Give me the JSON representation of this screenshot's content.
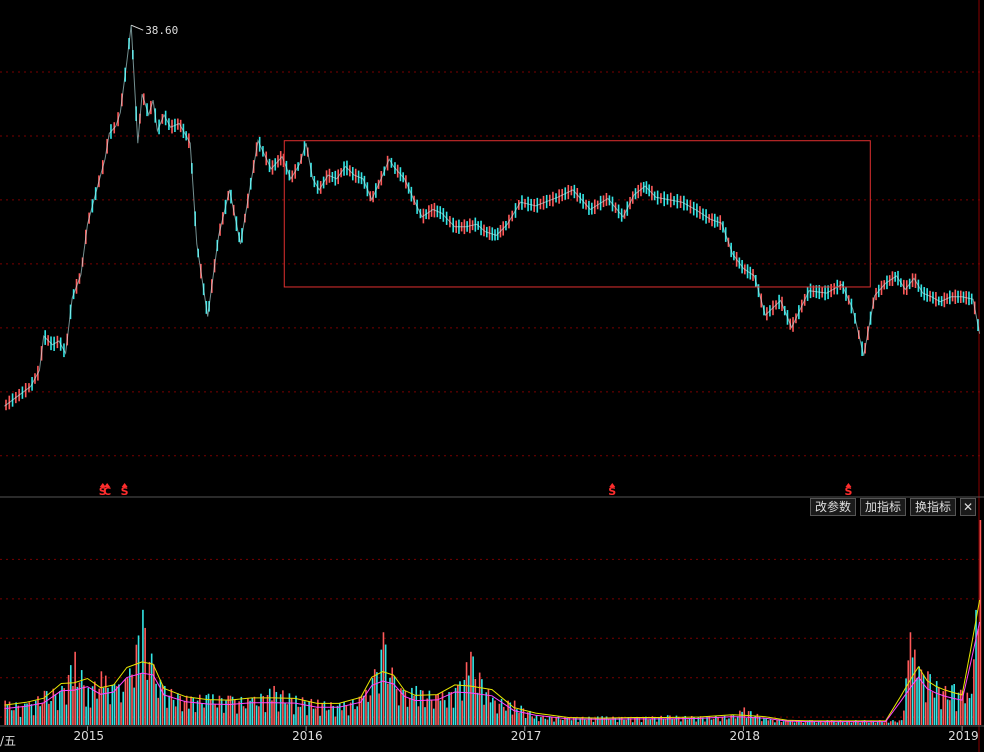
{
  "toolbar": {
    "change_params": "改参数",
    "add_indicator": "加指标",
    "switch_indicator": "换指标",
    "close_symbol": "✕"
  },
  "corner_label": "/五",
  "colors": {
    "background": "#000000",
    "up": "#ff5a5a",
    "down": "#33e6e6",
    "grid": "#7a0000",
    "axis": "#8a0000",
    "rectangle": "#e03030",
    "marker": "#ff2d2d",
    "ma_yellow": "#e6e600",
    "ma_magenta": "#ff44ff",
    "text": "#dddddd"
  },
  "chart_data": [
    {
      "type": "line",
      "panel": "price",
      "x_tick_labels": [
        "2015",
        "2016",
        "2017",
        "2018",
        "2019"
      ],
      "x_tick_values": [
        2015.0,
        2016.0,
        2017.0,
        2018.0,
        2019.0
      ],
      "xlim": [
        2014.6,
        2019.1
      ],
      "ylim": [
        2,
        40
      ],
      "grid": true,
      "max_label": "38.60",
      "series": [
        {
          "x": [
            2014.62,
            2014.68,
            2014.74,
            2014.78,
            2014.8,
            2014.84,
            2014.87,
            2014.9,
            2014.93,
            2014.97,
            2015.0,
            2015.03,
            2015.06,
            2015.08,
            2015.1,
            2015.13,
            2015.15,
            2015.18,
            2015.2,
            2015.23,
            2015.25,
            2015.28,
            2015.3,
            2015.32,
            2015.35,
            2015.38,
            2015.42,
            2015.47,
            2015.5,
            2015.55,
            2015.6,
            2015.65,
            2015.7,
            2015.78,
            2015.84,
            2015.89,
            2015.93,
            2015.97,
            2016.0,
            2016.03,
            2016.06,
            2016.1,
            2016.14,
            2016.18,
            2016.22,
            2016.26,
            2016.3,
            2016.35,
            2016.38,
            2016.4,
            2016.45,
            2016.5,
            2016.53,
            2016.58,
            2016.62,
            2016.68,
            2016.73,
            2016.78,
            2016.82,
            2016.87,
            2016.92,
            2016.98,
            2017.05,
            2017.15,
            2017.22,
            2017.3,
            2017.38,
            2017.45,
            2017.5,
            2017.55,
            2017.6,
            2017.66,
            2017.72,
            2017.78,
            2017.85,
            2017.9,
            2017.95,
            2018.0,
            2018.05,
            2018.1,
            2018.17,
            2018.22,
            2018.3,
            2018.38,
            2018.45,
            2018.5,
            2018.52,
            2018.55,
            2018.6,
            2018.65,
            2018.7,
            2018.74,
            2018.78,
            2018.82,
            2018.86,
            2018.9,
            2018.95,
            2019.0,
            2019.05,
            2019.08
          ],
          "y": [
            7.6,
            8.4,
            9.2,
            10.5,
            13.3,
            12.6,
            12.9,
            11.9,
            16.4,
            18.3,
            22.4,
            24.4,
            26.4,
            27.7,
            29.8,
            30.4,
            31.5,
            35.6,
            38.6,
            29.0,
            33.0,
            31.3,
            32.5,
            30.0,
            31.3,
            30.3,
            30.6,
            29.0,
            20.8,
            14.9,
            21.5,
            25.2,
            20.8,
            29.2,
            26.9,
            27.9,
            26.1,
            27.3,
            29.0,
            26.1,
            25.2,
            26.4,
            26.1,
            27.1,
            26.4,
            26.1,
            24.4,
            26.4,
            27.7,
            27.1,
            26.1,
            24.1,
            23.0,
            23.6,
            23.3,
            22.2,
            22.2,
            22.4,
            21.8,
            21.5,
            22.4,
            24.2,
            23.9,
            24.6,
            25.2,
            23.6,
            24.5,
            23.0,
            24.8,
            25.5,
            24.6,
            24.4,
            24.2,
            23.6,
            22.8,
            22.5,
            20.0,
            18.8,
            18.2,
            15.0,
            16.2,
            14.0,
            17.0,
            16.8,
            17.5,
            15.5,
            14.0,
            11.7,
            16.6,
            17.6,
            18.2,
            17.1,
            18.0,
            16.8,
            16.5,
            16.1,
            16.5,
            16.5,
            16.3,
            13.5
          ]
        }
      ],
      "annotations": [
        {
          "type": "rectangle",
          "x0": 2015.9,
          "x1": 2018.58,
          "y0": 17.3,
          "y1": 29.2
        },
        {
          "type": "marker",
          "x": 2015.07,
          "label": "S"
        },
        {
          "type": "marker",
          "x": 2015.09,
          "label": "C"
        },
        {
          "type": "marker",
          "x": 2015.17,
          "label": "S"
        },
        {
          "type": "marker",
          "x": 2017.4,
          "label": "S"
        },
        {
          "type": "marker",
          "x": 2018.48,
          "label": "S"
        }
      ]
    },
    {
      "type": "bar",
      "panel": "volume",
      "xlim": [
        2014.6,
        2019.1
      ],
      "grid": true,
      "series": [
        {
          "x": [
            2014.62,
            2014.72,
            2014.8,
            2014.88,
            2014.94,
            2015.0,
            2015.06,
            2015.12,
            2015.18,
            2015.25,
            2015.3,
            2015.35,
            2015.45,
            2015.55,
            2015.65,
            2015.75,
            2015.85,
            2015.95,
            2016.05,
            2016.15,
            2016.25,
            2016.3,
            2016.35,
            2016.4,
            2016.45,
            2016.5,
            2016.6,
            2016.68,
            2016.75,
            2016.85,
            2016.95,
            2017.05,
            2017.2,
            2017.35,
            2017.5,
            2017.65,
            2017.8,
            2017.95,
            2018.0,
            2018.1,
            2018.2,
            2018.3,
            2018.4,
            2018.55,
            2018.65,
            2018.72,
            2018.76,
            2018.8,
            2018.84,
            2018.88,
            2018.92,
            2018.96,
            2019.0,
            2019.04,
            2019.08
          ],
          "y": [
            25,
            22,
            35,
            40,
            75,
            38,
            55,
            42,
            48,
            118,
            62,
            40,
            30,
            32,
            30,
            28,
            40,
            30,
            26,
            22,
            30,
            48,
            95,
            50,
            35,
            40,
            32,
            38,
            75,
            28,
            25,
            10,
            8,
            9,
            8,
            10,
            9,
            10,
            18,
            7,
            5,
            5,
            5,
            5,
            5,
            5,
            95,
            60,
            55,
            45,
            40,
            42,
            35,
            32,
            210
          ]
        }
      ]
    }
  ]
}
